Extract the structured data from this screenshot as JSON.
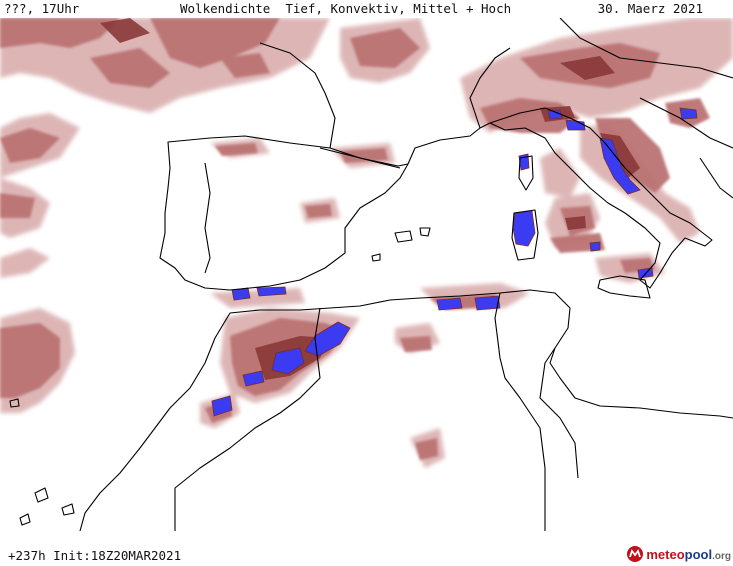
{
  "header": {
    "location_label": "???",
    "time_label": "17Uhr",
    "title": "Wolkendichte  Tief, Konvektiv, Mittel + Hoch",
    "date": "30. Maerz 2021"
  },
  "footer": {
    "forecast": "+237h Init:18Z20MAR2021"
  },
  "logo": {
    "part1": "meteo",
    "part2": "pool",
    "part3": ".org"
  },
  "colors": {
    "background": "#ffffff",
    "coastline": "#000000",
    "cloud_light": "#d9a8a8",
    "cloud_mid": "#b86b6b",
    "cloud_dark": "#7a2a2a",
    "convective": "#3a3af0"
  }
}
